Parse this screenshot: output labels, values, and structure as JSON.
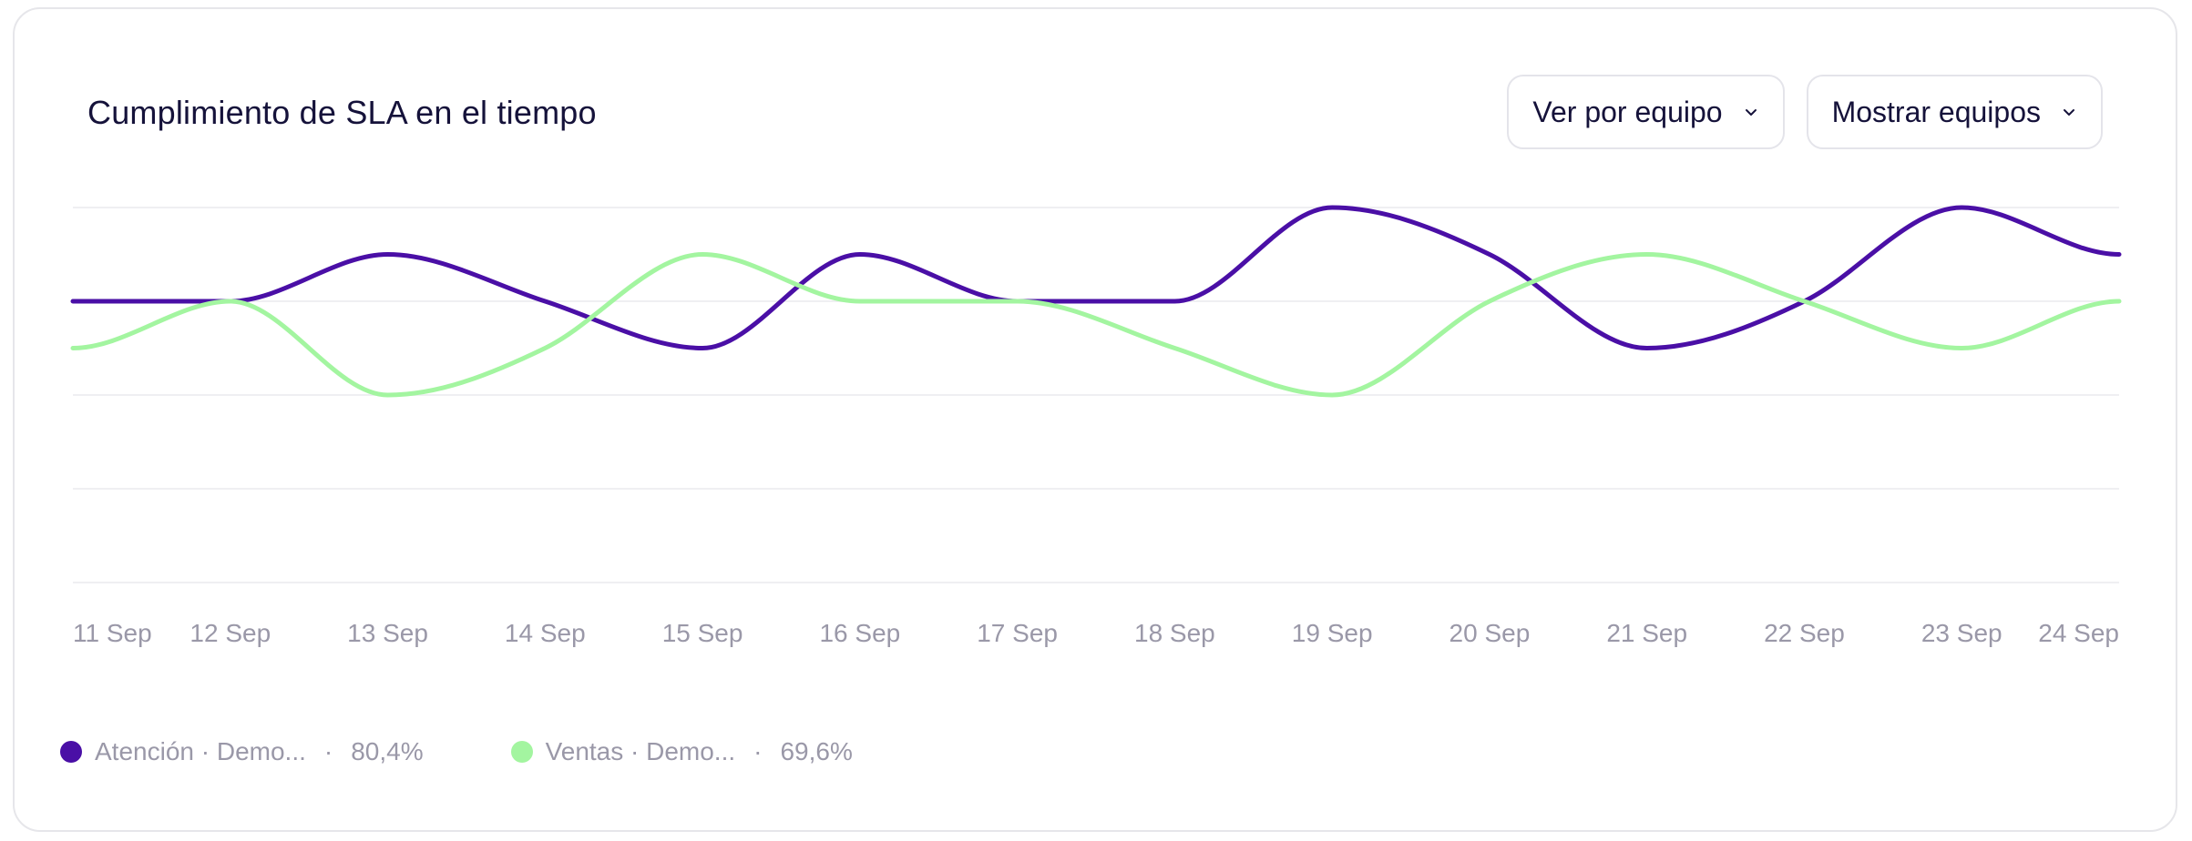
{
  "header": {
    "title": "Cumplimiento de SLA en el tiempo"
  },
  "controls": {
    "view_by": {
      "label": "Ver por equipo",
      "icon": "chevron-down-icon"
    },
    "show_teams": {
      "label": "Mostrar equipos",
      "icon": "chevron-down-icon"
    }
  },
  "chart_data": {
    "type": "line",
    "title": "Cumplimiento de SLA en el tiempo",
    "categories": [
      "11 Sep",
      "12 Sep",
      "13 Sep",
      "14 Sep",
      "15 Sep",
      "16 Sep",
      "17 Sep",
      "18 Sep",
      "19 Sep",
      "20 Sep",
      "21 Sep",
      "22 Sep",
      "23 Sep",
      "24 Sep"
    ],
    "x_positions": [
      0,
      1,
      2,
      3,
      4,
      5,
      6,
      7,
      8,
      9,
      10,
      11,
      12,
      13
    ],
    "ylim": [
      0,
      4
    ],
    "grid": true,
    "legend_position": "bottom-left",
    "series": [
      {
        "name": "Atención · Demo...",
        "summary": "80,4%",
        "color": "#4a0fa6",
        "values": [
          3,
          3,
          3.5,
          3,
          2.5,
          3.5,
          3,
          3,
          4,
          3.5,
          2.5,
          3,
          4,
          3.5
        ]
      },
      {
        "name": "Ventas · Demo...",
        "summary": "69,6%",
        "color": "#a3f5a0",
        "values": [
          2.5,
          3,
          2,
          2.5,
          3.5,
          3,
          3,
          2.5,
          2,
          3,
          3.5,
          3,
          2.5,
          3
        ]
      }
    ]
  },
  "legend": {
    "separator": "·"
  }
}
